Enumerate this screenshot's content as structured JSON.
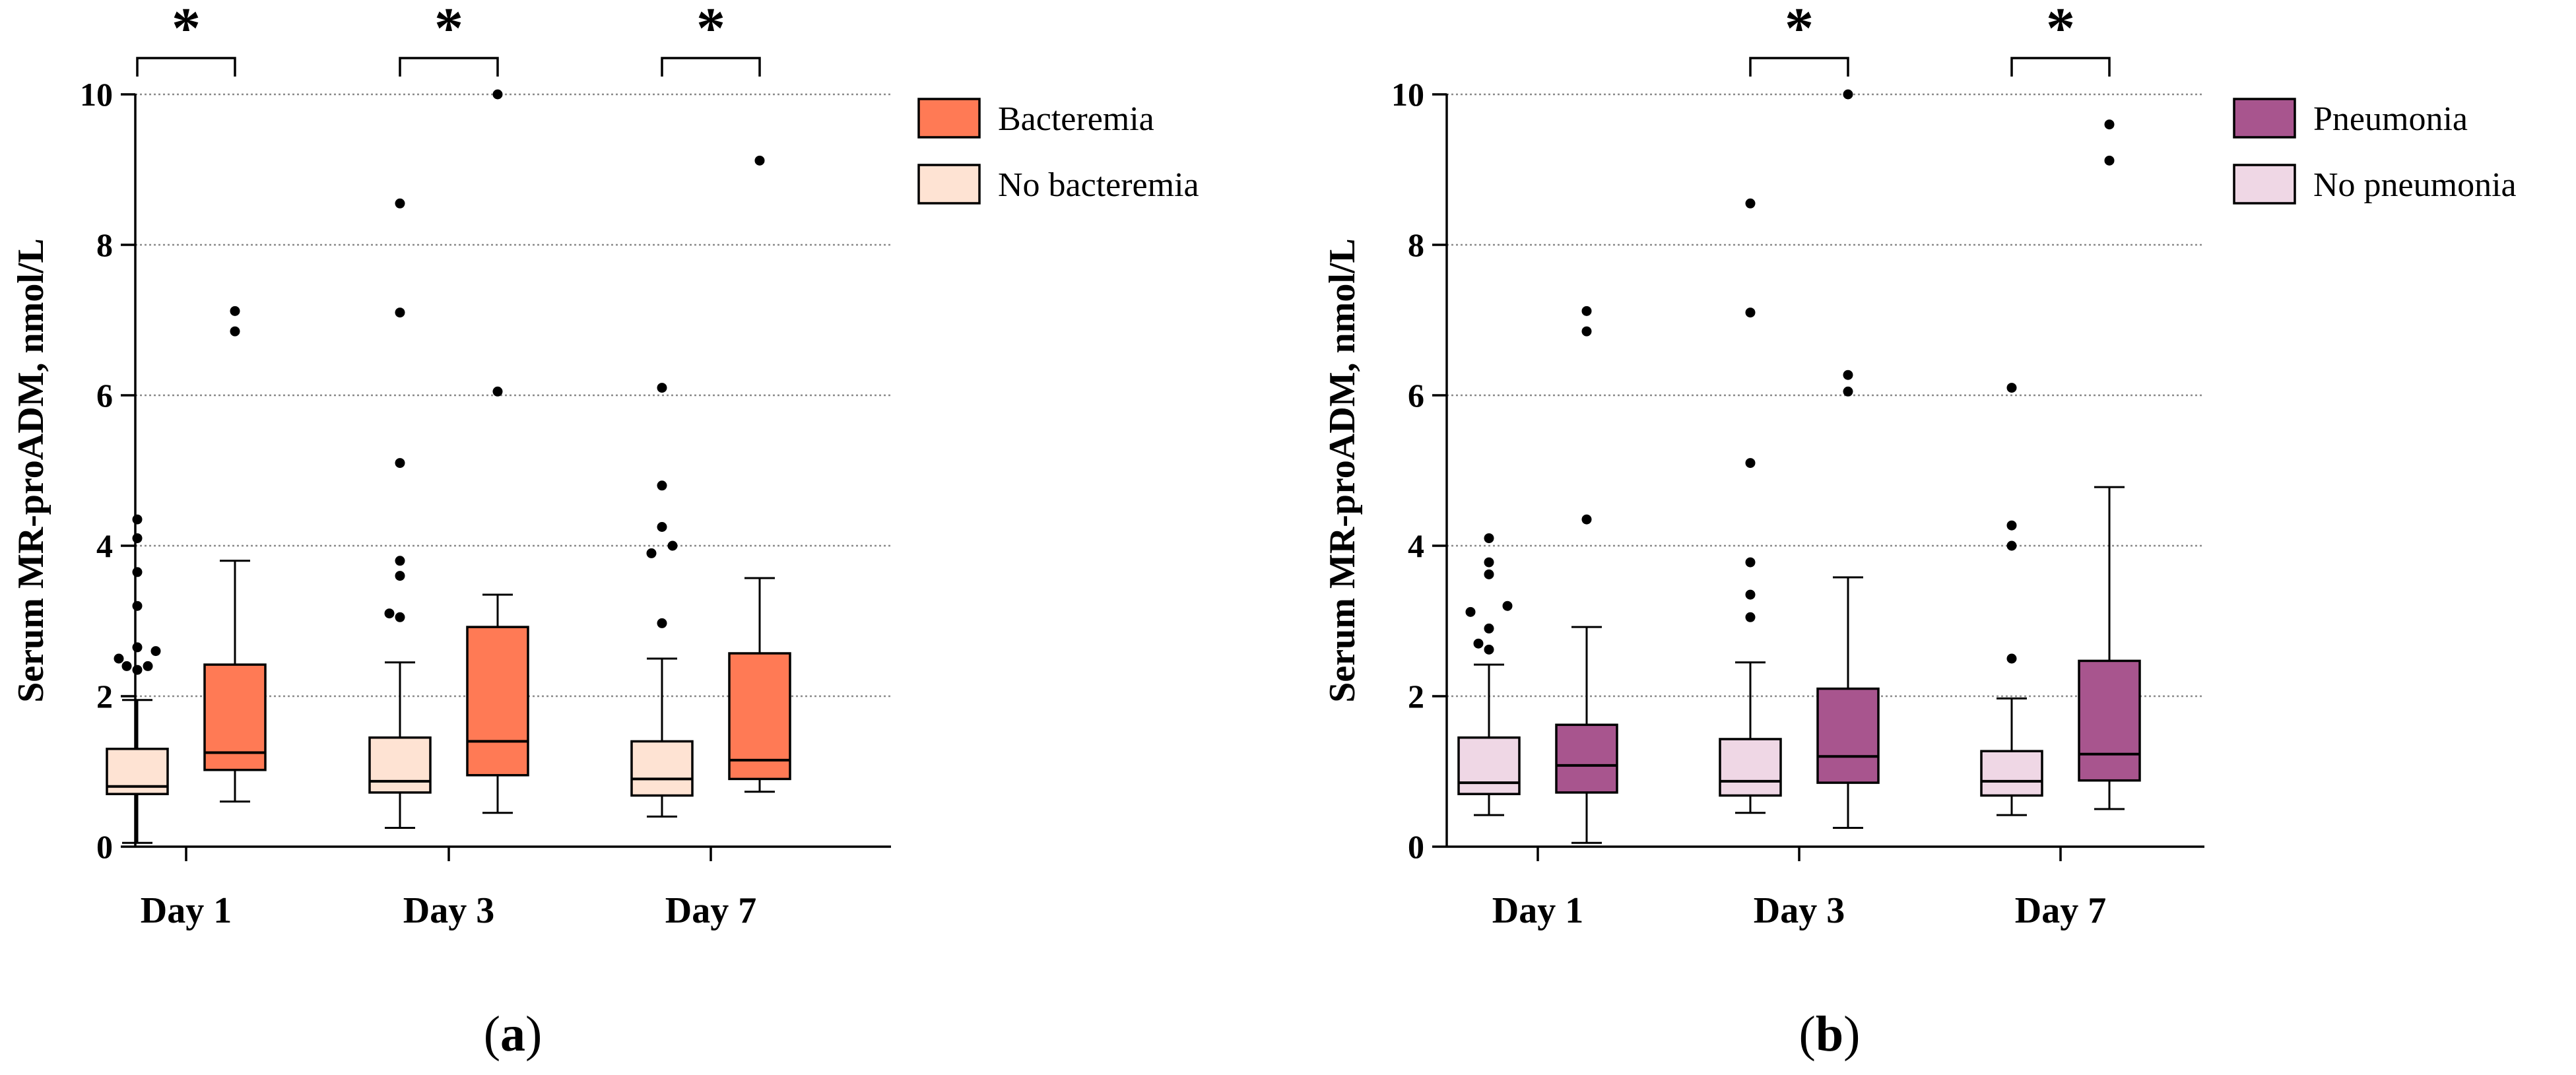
{
  "colors": {
    "bacteremia": "#FF7A55",
    "no_bacteremia": "#FEE3D3",
    "pneumonia": "#A8558E",
    "no_pneumonia": "#EFD7E5",
    "axis": "#000000",
    "grid": "#8a8a8a"
  },
  "chart_data": [
    {
      "type": "box",
      "panel_label": {
        "open": "(",
        "letter": "a",
        "close": ")"
      },
      "title": "",
      "ylabel": "Serum MR-proADM, nmol/L",
      "xlabel": "",
      "ylim": [
        0,
        10
      ],
      "yticks": [
        "0",
        "2",
        "4",
        "6",
        "8",
        "10"
      ],
      "grid": "horizontal dotted at 2, 4, 6, 8, 10",
      "legend": "right",
      "categories": [
        "Day 1",
        "Day 3",
        "Day 7"
      ],
      "series": [
        {
          "name": "No bacteremia",
          "color_key": "no_bacteremia",
          "boxes": [
            {
              "min": 0.05,
              "q1": 0.7,
              "median": 0.8,
              "q3": 1.3,
              "max": 1.95,
              "outliers": [
                2.35,
                2.4,
                2.4,
                2.5,
                2.6,
                2.65,
                3.2,
                3.65,
                4.1,
                4.35
              ]
            },
            {
              "min": 0.25,
              "q1": 0.72,
              "median": 0.87,
              "q3": 1.45,
              "max": 2.45,
              "outliers": [
                3.05,
                3.1,
                3.6,
                3.8,
                5.1,
                7.1,
                8.55
              ]
            },
            {
              "min": 0.4,
              "q1": 0.68,
              "median": 0.9,
              "q3": 1.4,
              "max": 2.5,
              "outliers": [
                2.97,
                3.9,
                4.0,
                4.25,
                4.8,
                6.1
              ]
            }
          ]
        },
        {
          "name": "Bacteremia",
          "color_key": "bacteremia",
          "boxes": [
            {
              "min": 0.6,
              "q1": 1.02,
              "median": 1.25,
              "q3": 2.42,
              "max": 3.8,
              "outliers": [
                6.85,
                7.12
              ]
            },
            {
              "min": 0.45,
              "q1": 0.95,
              "median": 1.4,
              "q3": 2.92,
              "max": 3.35,
              "outliers": [
                6.05,
                10.0
              ]
            },
            {
              "min": 0.73,
              "q1": 0.9,
              "median": 1.15,
              "q3": 2.57,
              "max": 3.57,
              "outliers": [
                9.12
              ]
            }
          ]
        }
      ],
      "significance": [
        {
          "category": "Day 1",
          "mark": "*"
        },
        {
          "category": "Day 3",
          "mark": "*"
        },
        {
          "category": "Day 7",
          "mark": "*"
        }
      ]
    },
    {
      "type": "box",
      "panel_label": {
        "open": "(",
        "letter": "b",
        "close": ")"
      },
      "title": "",
      "ylabel": "Serum MR-proADM, nmol/L",
      "xlabel": "",
      "ylim": [
        0,
        10
      ],
      "yticks": [
        "0",
        "2",
        "4",
        "6",
        "8",
        "10"
      ],
      "grid": "horizontal dotted at 2, 4, 6, 8, 10",
      "legend": "right",
      "categories": [
        "Day 1",
        "Day 3",
        "Day 7"
      ],
      "series": [
        {
          "name": "No pneumonia",
          "color_key": "no_pneumonia",
          "boxes": [
            {
              "min": 0.42,
              "q1": 0.7,
              "median": 0.85,
              "q3": 1.45,
              "max": 2.42,
              "outliers": [
                2.62,
                2.7,
                2.9,
                3.12,
                3.2,
                3.62,
                3.78,
                4.1
              ]
            },
            {
              "min": 0.45,
              "q1": 0.68,
              "median": 0.87,
              "q3": 1.43,
              "max": 2.45,
              "outliers": [
                3.05,
                3.35,
                3.78,
                5.1,
                7.1,
                8.55
              ]
            },
            {
              "min": 0.42,
              "q1": 0.68,
              "median": 0.87,
              "q3": 1.27,
              "max": 1.97,
              "outliers": [
                2.5,
                4.0,
                4.27,
                6.1
              ]
            }
          ]
        },
        {
          "name": "Pneumonia",
          "color_key": "pneumonia",
          "boxes": [
            {
              "min": 0.05,
              "q1": 0.72,
              "median": 1.08,
              "q3": 1.62,
              "max": 2.92,
              "outliers": [
                4.35,
                6.85,
                7.12
              ]
            },
            {
              "min": 0.25,
              "q1": 0.85,
              "median": 1.2,
              "q3": 2.1,
              "max": 3.58,
              "outliers": [
                6.05,
                6.27,
                10.0
              ]
            },
            {
              "min": 0.5,
              "q1": 0.88,
              "median": 1.23,
              "q3": 2.47,
              "max": 4.78,
              "outliers": [
                9.12,
                9.6
              ]
            }
          ]
        }
      ],
      "significance": [
        {
          "category": "Day 3",
          "mark": "*"
        },
        {
          "category": "Day 7",
          "mark": "*"
        }
      ]
    }
  ]
}
